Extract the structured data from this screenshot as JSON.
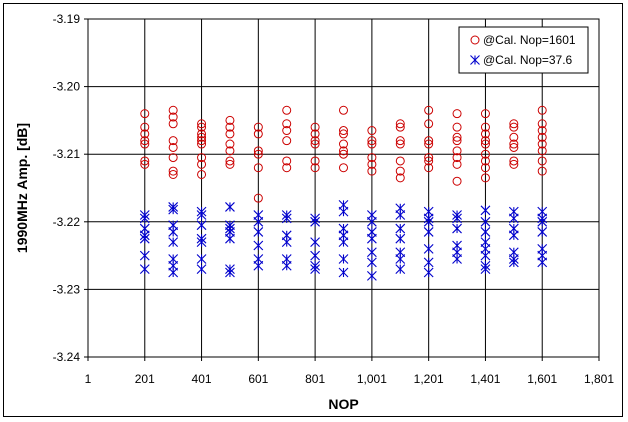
{
  "chart_data": {
    "type": "scatter",
    "title": "",
    "xlabel": "NOP",
    "ylabel": "1990MHz Amp. [dB]",
    "xlim": [
      1,
      1801
    ],
    "ylim": [
      -3.24,
      -3.19
    ],
    "x_tick_labels": [
      "1",
      "201",
      "401",
      "601",
      "801",
      "1,001",
      "1,201",
      "1,401",
      "1,601",
      "1,801"
    ],
    "y_tick_labels": [
      "-3.19",
      "-3.20",
      "-3.21",
      "-3.22",
      "-3.23",
      "-3.24"
    ],
    "grid": true,
    "legend_position": "top-right",
    "series": [
      {
        "name": "@Cal. Nop=1601",
        "color": "#cc0000",
        "marker": "circle",
        "points": [
          [
            201,
            -3.204
          ],
          [
            201,
            -3.206
          ],
          [
            201,
            -3.207
          ],
          [
            201,
            -3.208
          ],
          [
            201,
            -3.2085
          ],
          [
            201,
            -3.211
          ],
          [
            201,
            -3.2115
          ],
          [
            301,
            -3.2035
          ],
          [
            301,
            -3.2045
          ],
          [
            301,
            -3.2055
          ],
          [
            301,
            -3.208
          ],
          [
            301,
            -3.209
          ],
          [
            301,
            -3.2105
          ],
          [
            301,
            -3.2125
          ],
          [
            301,
            -3.213
          ],
          [
            401,
            -3.2055
          ],
          [
            401,
            -3.206
          ],
          [
            401,
            -3.207
          ],
          [
            401,
            -3.2075
          ],
          [
            401,
            -3.208
          ],
          [
            401,
            -3.2085
          ],
          [
            401,
            -3.2105
          ],
          [
            401,
            -3.2115
          ],
          [
            401,
            -3.213
          ],
          [
            501,
            -3.205
          ],
          [
            501,
            -3.206
          ],
          [
            501,
            -3.207
          ],
          [
            501,
            -3.2085
          ],
          [
            501,
            -3.2095
          ],
          [
            501,
            -3.211
          ],
          [
            501,
            -3.2115
          ],
          [
            601,
            -3.206
          ],
          [
            601,
            -3.207
          ],
          [
            601,
            -3.2095
          ],
          [
            601,
            -3.21
          ],
          [
            601,
            -3.212
          ],
          [
            601,
            -3.2165
          ],
          [
            701,
            -3.2035
          ],
          [
            701,
            -3.2055
          ],
          [
            701,
            -3.2065
          ],
          [
            701,
            -3.208
          ],
          [
            701,
            -3.211
          ],
          [
            701,
            -3.212
          ],
          [
            801,
            -3.206
          ],
          [
            801,
            -3.207
          ],
          [
            801,
            -3.208
          ],
          [
            801,
            -3.2085
          ],
          [
            801,
            -3.211
          ],
          [
            801,
            -3.212
          ],
          [
            901,
            -3.2035
          ],
          [
            901,
            -3.2065
          ],
          [
            901,
            -3.207
          ],
          [
            901,
            -3.2085
          ],
          [
            901,
            -3.2095
          ],
          [
            901,
            -3.21
          ],
          [
            901,
            -3.212
          ],
          [
            1001,
            -3.2065
          ],
          [
            1001,
            -3.208
          ],
          [
            1001,
            -3.2085
          ],
          [
            1001,
            -3.2105
          ],
          [
            1001,
            -3.2115
          ],
          [
            1001,
            -3.2125
          ],
          [
            1101,
            -3.2055
          ],
          [
            1101,
            -3.206
          ],
          [
            1101,
            -3.208
          ],
          [
            1101,
            -3.2085
          ],
          [
            1101,
            -3.211
          ],
          [
            1101,
            -3.2125
          ],
          [
            1101,
            -3.2135
          ],
          [
            1201,
            -3.2035
          ],
          [
            1201,
            -3.2055
          ],
          [
            1201,
            -3.208
          ],
          [
            1201,
            -3.2085
          ],
          [
            1201,
            -3.2105
          ],
          [
            1201,
            -3.211
          ],
          [
            1201,
            -3.212
          ],
          [
            1301,
            -3.204
          ],
          [
            1301,
            -3.206
          ],
          [
            1301,
            -3.2075
          ],
          [
            1301,
            -3.208
          ],
          [
            1301,
            -3.2095
          ],
          [
            1301,
            -3.2105
          ],
          [
            1301,
            -3.2115
          ],
          [
            1301,
            -3.214
          ],
          [
            1401,
            -3.204
          ],
          [
            1401,
            -3.206
          ],
          [
            1401,
            -3.207
          ],
          [
            1401,
            -3.208
          ],
          [
            1401,
            -3.2085
          ],
          [
            1401,
            -3.21
          ],
          [
            1401,
            -3.211
          ],
          [
            1401,
            -3.212
          ],
          [
            1401,
            -3.2135
          ],
          [
            1501,
            -3.2055
          ],
          [
            1501,
            -3.206
          ],
          [
            1501,
            -3.2075
          ],
          [
            1501,
            -3.2085
          ],
          [
            1501,
            -3.209
          ],
          [
            1501,
            -3.211
          ],
          [
            1501,
            -3.2115
          ],
          [
            1601,
            -3.2035
          ],
          [
            1601,
            -3.2055
          ],
          [
            1601,
            -3.2065
          ],
          [
            1601,
            -3.2075
          ],
          [
            1601,
            -3.2085
          ],
          [
            1601,
            -3.2095
          ],
          [
            1601,
            -3.211
          ],
          [
            1601,
            -3.2125
          ]
        ]
      },
      {
        "name": "@Cal. Nop=37.6",
        "color": "#0000cc",
        "marker": "asterisk",
        "points": [
          [
            201,
            -3.219
          ],
          [
            201,
            -3.2195
          ],
          [
            201,
            -3.221
          ],
          [
            201,
            -3.222
          ],
          [
            201,
            -3.2225
          ],
          [
            201,
            -3.225
          ],
          [
            201,
            -3.227
          ],
          [
            301,
            -3.2178
          ],
          [
            301,
            -3.2182
          ],
          [
            301,
            -3.2205
          ],
          [
            301,
            -3.2215
          ],
          [
            301,
            -3.223
          ],
          [
            301,
            -3.2255
          ],
          [
            301,
            -3.2265
          ],
          [
            301,
            -3.2275
          ],
          [
            401,
            -3.2185
          ],
          [
            401,
            -3.219
          ],
          [
            401,
            -3.2205
          ],
          [
            401,
            -3.2225
          ],
          [
            401,
            -3.223
          ],
          [
            401,
            -3.2255
          ],
          [
            401,
            -3.227
          ],
          [
            501,
            -3.2178
          ],
          [
            501,
            -3.2205
          ],
          [
            501,
            -3.221
          ],
          [
            501,
            -3.2215
          ],
          [
            501,
            -3.2225
          ],
          [
            501,
            -3.227
          ],
          [
            501,
            -3.2275
          ],
          [
            601,
            -3.219
          ],
          [
            601,
            -3.22
          ],
          [
            601,
            -3.2215
          ],
          [
            601,
            -3.2235
          ],
          [
            601,
            -3.2255
          ],
          [
            601,
            -3.2265
          ],
          [
            701,
            -3.219
          ],
          [
            701,
            -3.2195
          ],
          [
            701,
            -3.222
          ],
          [
            701,
            -3.223
          ],
          [
            701,
            -3.2255
          ],
          [
            701,
            -3.2265
          ],
          [
            801,
            -3.2195
          ],
          [
            801,
            -3.22
          ],
          [
            801,
            -3.223
          ],
          [
            801,
            -3.225
          ],
          [
            801,
            -3.2265
          ],
          [
            801,
            -3.227
          ],
          [
            901,
            -3.2175
          ],
          [
            901,
            -3.2185
          ],
          [
            901,
            -3.221
          ],
          [
            901,
            -3.222
          ],
          [
            901,
            -3.223
          ],
          [
            901,
            -3.2255
          ],
          [
            901,
            -3.2275
          ],
          [
            1001,
            -3.219
          ],
          [
            1001,
            -3.22
          ],
          [
            1001,
            -3.2215
          ],
          [
            1001,
            -3.2225
          ],
          [
            1001,
            -3.2245
          ],
          [
            1001,
            -3.226
          ],
          [
            1001,
            -3.228
          ],
          [
            1101,
            -3.218
          ],
          [
            1101,
            -3.219
          ],
          [
            1101,
            -3.221
          ],
          [
            1101,
            -3.2225
          ],
          [
            1101,
            -3.2245
          ],
          [
            1101,
            -3.2255
          ],
          [
            1101,
            -3.227
          ],
          [
            1201,
            -3.2185
          ],
          [
            1201,
            -3.2195
          ],
          [
            1201,
            -3.22
          ],
          [
            1201,
            -3.2215
          ],
          [
            1201,
            -3.224
          ],
          [
            1201,
            -3.226
          ],
          [
            1201,
            -3.2275
          ],
          [
            1301,
            -3.219
          ],
          [
            1301,
            -3.2195
          ],
          [
            1301,
            -3.221
          ],
          [
            1301,
            -3.2235
          ],
          [
            1301,
            -3.2245
          ],
          [
            1301,
            -3.2255
          ],
          [
            1401,
            -3.2183
          ],
          [
            1401,
            -3.22
          ],
          [
            1401,
            -3.2215
          ],
          [
            1401,
            -3.223
          ],
          [
            1401,
            -3.224
          ],
          [
            1401,
            -3.225
          ],
          [
            1401,
            -3.2265
          ],
          [
            1401,
            -3.227
          ],
          [
            1501,
            -3.2185
          ],
          [
            1501,
            -3.2195
          ],
          [
            1501,
            -3.221
          ],
          [
            1501,
            -3.222
          ],
          [
            1501,
            -3.2245
          ],
          [
            1501,
            -3.2255
          ],
          [
            1501,
            -3.226
          ],
          [
            1601,
            -3.2185
          ],
          [
            1601,
            -3.2195
          ],
          [
            1601,
            -3.22
          ],
          [
            1601,
            -3.2215
          ],
          [
            1601,
            -3.224
          ],
          [
            1601,
            -3.225
          ],
          [
            1601,
            -3.226
          ]
        ]
      }
    ]
  }
}
